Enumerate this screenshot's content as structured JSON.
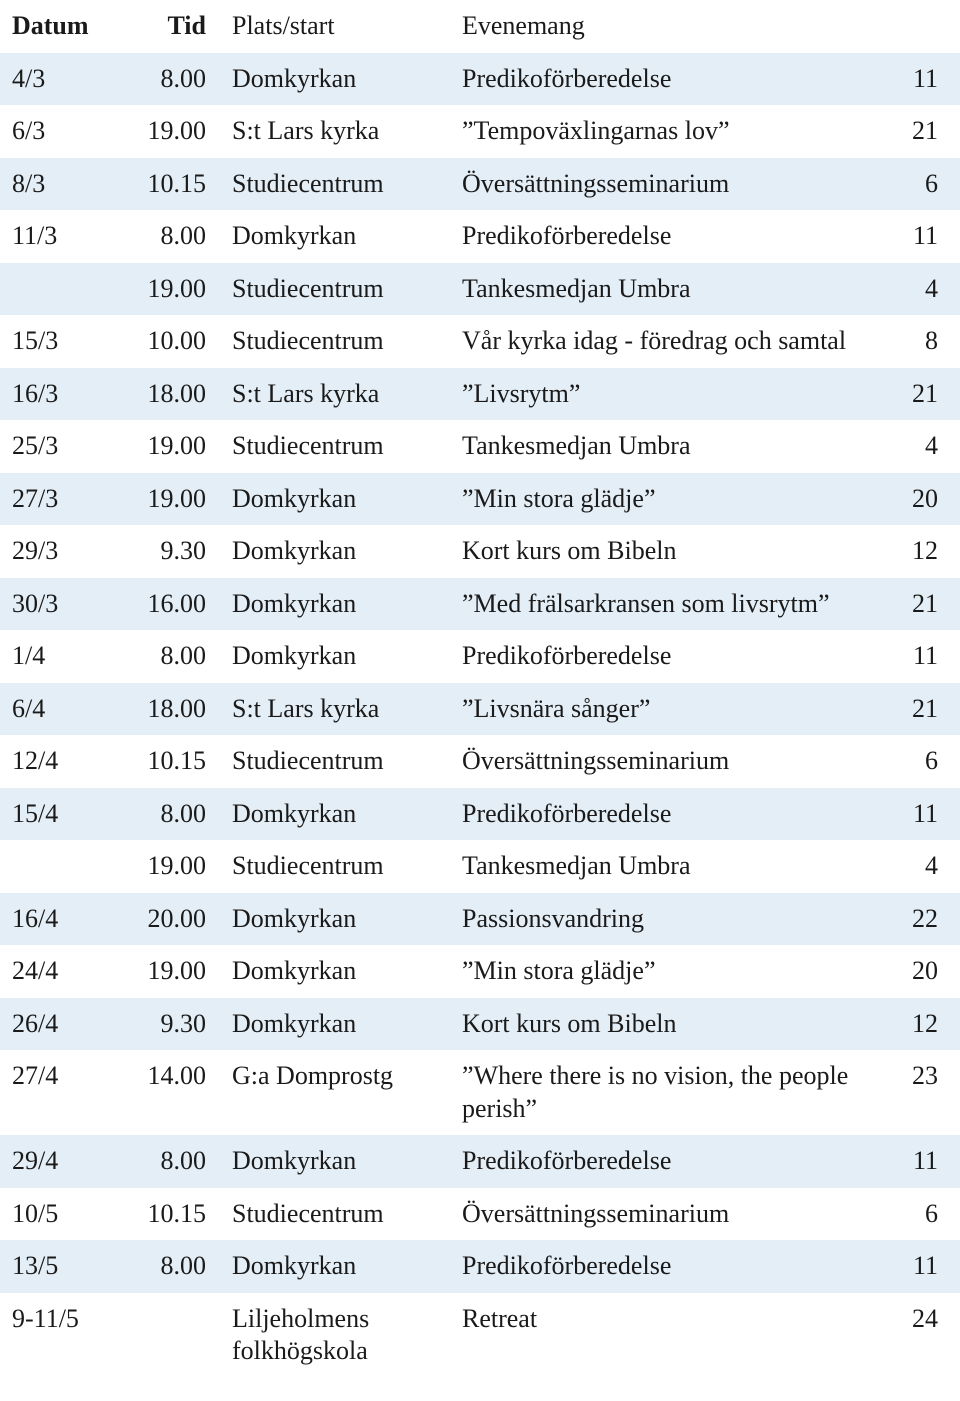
{
  "table": {
    "stripe_color": "#e4eef6",
    "text_color": "#1a1a1a",
    "font_size_pt": 20,
    "columns": {
      "date": "Datum",
      "time": "Tid",
      "place": "Plats/start",
      "event": "Evenemang",
      "num": ""
    },
    "rows": [
      {
        "date": "4/3",
        "time": "8.00",
        "place": "Domkyrkan",
        "event": "Predikoförberedelse",
        "num": "11",
        "stripe": true
      },
      {
        "date": "6/3",
        "time": "19.00",
        "place": "S:t Lars kyrka",
        "event": "”Tempoväxlingarnas lov”",
        "num": "21",
        "stripe": false
      },
      {
        "date": "8/3",
        "time": "10.15",
        "place": "Studiecentrum",
        "event": "Översättningsseminarium",
        "num": "6",
        "stripe": true
      },
      {
        "date": "11/3",
        "time": "8.00",
        "place": "Domkyrkan",
        "event": "Predikoförberedelse",
        "num": "11",
        "stripe": false
      },
      {
        "date": "",
        "time": "19.00",
        "place": "Studiecentrum",
        "event": "Tankesmedjan Umbra",
        "num": "4",
        "stripe": true
      },
      {
        "date": "15/3",
        "time": "10.00",
        "place": "Studiecentrum",
        "event": "Vår kyrka idag - föredrag och samtal",
        "num": "8",
        "stripe": false
      },
      {
        "date": "16/3",
        "time": "18.00",
        "place": "S:t Lars kyrka",
        "event": "”Livsrytm”",
        "num": "21",
        "stripe": true
      },
      {
        "date": "25/3",
        "time": "19.00",
        "place": "Studiecentrum",
        "event": "Tankesmedjan Umbra",
        "num": "4",
        "stripe": false
      },
      {
        "date": "27/3",
        "time": "19.00",
        "place": "Domkyrkan",
        "event": "”Min stora glädje”",
        "num": "20",
        "stripe": true
      },
      {
        "date": "29/3",
        "time": "9.30",
        "place": "Domkyrkan",
        "event": "Kort kurs om Bibeln",
        "num": "12",
        "stripe": false
      },
      {
        "date": "30/3",
        "time": "16.00",
        "place": "Domkyrkan",
        "event": "”Med frälsarkransen som livsrytm”",
        "num": "21",
        "stripe": true
      },
      {
        "date": "1/4",
        "time": "8.00",
        "place": "Domkyrkan",
        "event": "Predikoförberedelse",
        "num": "11",
        "stripe": false
      },
      {
        "date": "6/4",
        "time": "18.00",
        "place": "S:t Lars kyrka",
        "event": "”Livsnära sånger”",
        "num": "21",
        "stripe": true
      },
      {
        "date": "12/4",
        "time": "10.15",
        "place": "Studiecentrum",
        "event": "Översättningsseminarium",
        "num": "6",
        "stripe": false
      },
      {
        "date": "15/4",
        "time": "8.00",
        "place": "Domkyrkan",
        "event": "Predikoförberedelse",
        "num": "11",
        "stripe": true
      },
      {
        "date": "",
        "time": "19.00",
        "place": "Studiecentrum",
        "event": "Tankesmedjan Umbra",
        "num": "4",
        "stripe": false
      },
      {
        "date": "16/4",
        "time": "20.00",
        "place": "Domkyrkan",
        "event": "Passionsvandring",
        "num": "22",
        "stripe": true
      },
      {
        "date": "24/4",
        "time": "19.00",
        "place": "Domkyrkan",
        "event": "”Min stora glädje”",
        "num": "20",
        "stripe": false
      },
      {
        "date": "26/4",
        "time": "9.30",
        "place": "Domkyrkan",
        "event": "Kort kurs om Bibeln",
        "num": "12",
        "stripe": true
      },
      {
        "date": "27/4",
        "time": "14.00",
        "place": "G:a Domprostg",
        "event": "”Where there is no vision, the people perish”",
        "num": "23",
        "stripe": false
      },
      {
        "date": "29/4",
        "time": "8.00",
        "place": "Domkyrkan",
        "event": "Predikoförberedelse",
        "num": "11",
        "stripe": true
      },
      {
        "date": "10/5",
        "time": "10.15",
        "place": "Studiecentrum",
        "event": "Översättningsseminarium",
        "num": "6",
        "stripe": false
      },
      {
        "date": "13/5",
        "time": "8.00",
        "place": "Domkyrkan",
        "event": "Predikoförberedelse",
        "num": "11",
        "stripe": true
      },
      {
        "date": "9-11/5",
        "time": "",
        "place": "Liljeholmens folkhögskola",
        "event": "Retreat",
        "num": "24",
        "stripe": false
      }
    ]
  }
}
